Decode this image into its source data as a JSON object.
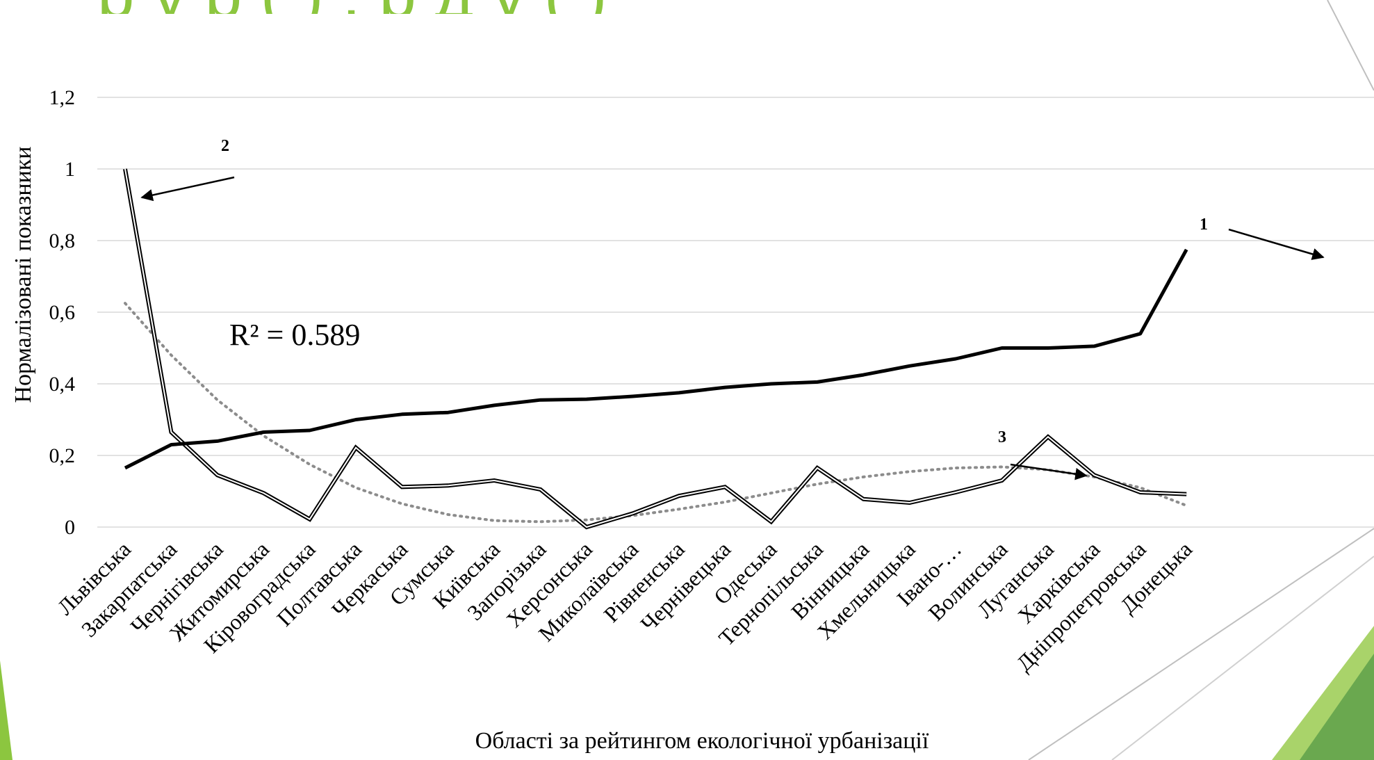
{
  "chart_data": {
    "type": "line",
    "title": "",
    "xlabel": "Області за рейтингом екологічної урбанізації",
    "ylabel": "Нормалізовані показники",
    "ylim": [
      0,
      1.2
    ],
    "y_ticks": [
      "0",
      "0,2",
      "0,4",
      "0,6",
      "0,8",
      "1",
      "1,2"
    ],
    "grid": true,
    "categories": [
      "Львівська",
      "Закарпатська",
      "Чернігівська",
      "Житомирська",
      "Кіровоградська",
      "Полтавська",
      "Черкаська",
      "Сумська",
      "Київська",
      "Запорізька",
      "Херсонська",
      "Миколаївська",
      "Рівненська",
      "Чернівецька",
      "Одеська",
      "Тернопільська",
      "Вінницька",
      "Хмельницька",
      "Івано-…",
      "Волинська",
      "Луганська",
      "Харківська",
      "Дніпропетровська",
      "Донецька"
    ],
    "series": [
      {
        "values": [
          0.165,
          0.23,
          0.24,
          0.265,
          0.27,
          0.3,
          0.315,
          0.32,
          0.34,
          0.355,
          0.357,
          0.365,
          0.375,
          0.39,
          0.4,
          0.405,
          0.425,
          0.45,
          0.47,
          0.5,
          0.5,
          0.505,
          0.54,
          0.775
        ]
      },
      {
        "values": [
          1.0,
          0.265,
          0.145,
          0.095,
          0.022,
          0.222,
          0.112,
          0.116,
          0.13,
          0.105,
          0.0,
          0.038,
          0.087,
          0.112,
          0.015,
          0.165,
          0.078,
          0.068,
          0.097,
          0.13,
          0.252,
          0.145,
          0.097,
          0.092
        ]
      },
      {
        "values": [
          0.625,
          0.48,
          0.355,
          0.255,
          0.175,
          0.11,
          0.065,
          0.035,
          0.018,
          0.015,
          0.02,
          0.032,
          0.05,
          0.07,
          0.095,
          0.12,
          0.14,
          0.155,
          0.165,
          0.168,
          0.16,
          0.14,
          0.11,
          0.06
        ]
      }
    ],
    "annotations": [
      "1",
      "2",
      "3",
      "R² = 0.589"
    ]
  },
  "title_fragment": "р у р   (     ) ,                   р  д у          (     )",
  "colors": {
    "grid": "#d9d9d9",
    "series1": "#000000",
    "series2": "#000000",
    "trend": "#8c8c8c",
    "accent_green": "#8cc63f",
    "accent_dark_green": "#6aa84f"
  }
}
